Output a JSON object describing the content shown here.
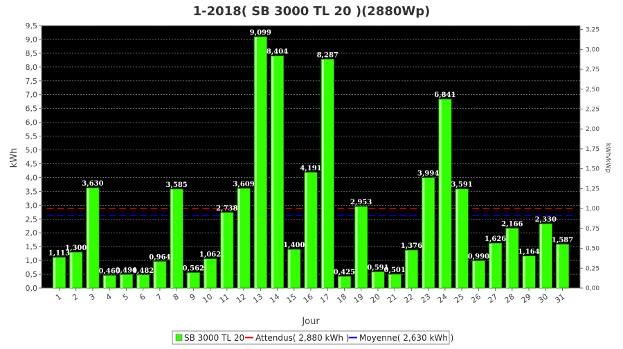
{
  "chart_data": {
    "type": "bar",
    "title": "1-2018( SB 3000 TL 20 )(2880Wp)",
    "xlabel": "Jour",
    "ylabel": "kWh",
    "y2label": "kWh/kWp",
    "categories": [
      "1",
      "2",
      "3",
      "4",
      "5",
      "6",
      "7",
      "8",
      "9",
      "10",
      "11",
      "12",
      "13",
      "14",
      "15",
      "16",
      "17",
      "18",
      "19",
      "20",
      "21",
      "22",
      "23",
      "24",
      "25",
      "26",
      "27",
      "28",
      "29",
      "30",
      "31"
    ],
    "series": [
      {
        "name": "SB 3000 TL 20",
        "values": [
          1.113,
          1.3,
          3.63,
          0.46,
          0.491,
          0.482,
          0.964,
          3.585,
          0.562,
          1.062,
          2.738,
          3.609,
          9.099,
          8.404,
          1.4,
          4.191,
          8.287,
          0.425,
          2.953,
          0.591,
          0.501,
          1.376,
          3.994,
          6.841,
          3.591,
          0.99,
          1.626,
          2.166,
          1.164,
          2.33,
          1.587
        ],
        "labels": [
          "1,113",
          "1,300",
          "3,630",
          "0,460",
          "0,491",
          "0,482",
          "0,964",
          "3,585",
          "0,562",
          "1,062",
          "2,738",
          "3,609",
          "9,099",
          "8,404",
          "1,400",
          "4,191",
          "8,287",
          "0,425",
          "2,953",
          "0,591",
          "0,501",
          "1,376",
          "3,994",
          "6,841",
          "3,591",
          "0,990",
          "1,626",
          "2,166",
          "1,164",
          "2,330",
          "1,587"
        ],
        "color": "#33ff00"
      }
    ],
    "reference_lines": [
      {
        "name": "Attendus",
        "value": 2.88,
        "color": "#ff0000",
        "style": "dashed"
      },
      {
        "name": "Moyenne",
        "value": 2.63,
        "color": "#0000ff",
        "style": "dashed"
      }
    ],
    "ylim": [
      0,
      9.5
    ],
    "yticks": [
      "0,0",
      "0,5",
      "1,0",
      "1,5",
      "2,0",
      "2,5",
      "3,0",
      "3,5",
      "4,0",
      "4,5",
      "5,0",
      "5,5",
      "6,0",
      "6,5",
      "7,0",
      "7,5",
      "8,0",
      "8,5",
      "9,0",
      "9,5"
    ],
    "y2lim": [
      0,
      3.2986
    ],
    "y2ticks": [
      "0,00",
      "0,25",
      "0,50",
      "0,75",
      "1,00",
      "1,25",
      "1,50",
      "1,75",
      "2,00",
      "2,25",
      "2,50",
      "2,75",
      "3,00",
      "3,25"
    ],
    "legend": {
      "position": "bottom",
      "items": [
        {
          "label": "SB 3000 TL 20",
          "kind": "box",
          "color": "#33ff00"
        },
        {
          "label": "Attendus( 2,880 kWh )",
          "kind": "line",
          "color": "#ff0000"
        },
        {
          "label": "Moyenne( 2,630 kWh )",
          "kind": "line",
          "color": "#0000ff"
        }
      ]
    },
    "grid": true,
    "plot_background": "#000000"
  }
}
